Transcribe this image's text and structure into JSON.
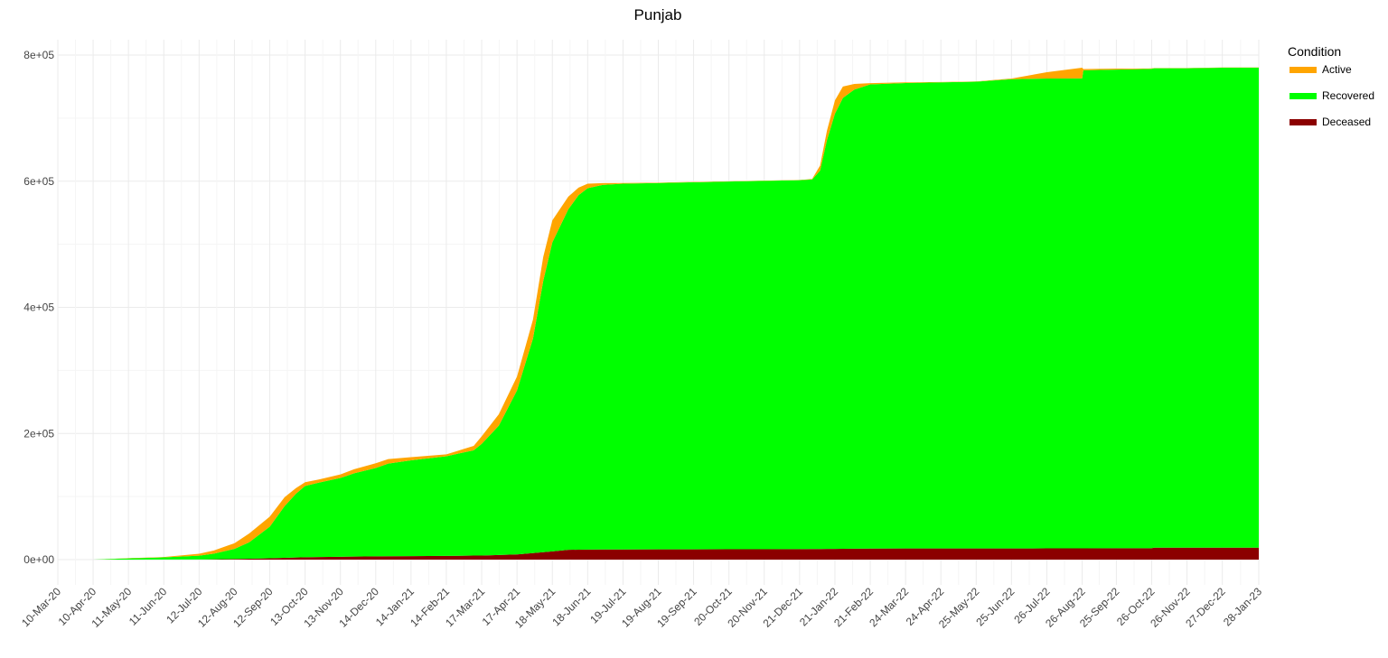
{
  "chart_data": {
    "type": "area",
    "title": "Punjab",
    "xlabel": "",
    "ylabel": "",
    "stacked": true,
    "grid": true,
    "legend_position": "top-right",
    "legend_title": "Condition",
    "ylim": [
      -40000,
      820000
    ],
    "y_ticks": [
      0,
      200000,
      400000,
      600000,
      800000
    ],
    "y_tick_labels": [
      "0e+00",
      "2e+05",
      "4e+05",
      "6e+05",
      "8e+05"
    ],
    "x_ticks": [
      "2020-03-10",
      "2020-04-10",
      "2020-05-11",
      "2020-06-11",
      "2020-07-12",
      "2020-08-12",
      "2020-09-12",
      "2020-10-13",
      "2020-11-13",
      "2020-12-14",
      "2021-01-14",
      "2021-02-14",
      "2021-03-17",
      "2021-04-17",
      "2021-05-18",
      "2021-06-18",
      "2021-07-19",
      "2021-08-19",
      "2021-09-19",
      "2021-10-20",
      "2021-11-20",
      "2021-12-21",
      "2022-01-21",
      "2022-02-21",
      "2022-03-24",
      "2022-04-24",
      "2022-05-25",
      "2022-06-25",
      "2022-07-26",
      "2022-08-26",
      "2022-09-25",
      "2022-10-26",
      "2022-11-26",
      "2022-12-27",
      "2023-01-28"
    ],
    "x_tick_labels": [
      "10-Mar-20",
      "10-Apr-20",
      "11-May-20",
      "11-Jun-20",
      "12-Jul-20",
      "12-Aug-20",
      "12-Sep-20",
      "13-Oct-20",
      "13-Nov-20",
      "14-Dec-20",
      "14-Jan-21",
      "14-Feb-21",
      "17-Mar-21",
      "17-Apr-21",
      "18-May-21",
      "18-Jun-21",
      "19-Jul-21",
      "19-Aug-21",
      "19-Sep-21",
      "20-Oct-21",
      "20-Nov-21",
      "21-Dec-21",
      "21-Jan-22",
      "21-Feb-22",
      "24-Mar-22",
      "24-Apr-22",
      "25-May-22",
      "25-Jun-22",
      "26-Jul-22",
      "26-Aug-22",
      "25-Sep-22",
      "26-Oct-22",
      "26-Nov-22",
      "27-Dec-22",
      "28-Jan-23"
    ],
    "series": [
      {
        "name": "Deceased",
        "color": "#8B0000",
        "points": [
          [
            "2020-03-10",
            0
          ],
          [
            "2020-04-10",
            0
          ],
          [
            "2020-05-11",
            0
          ],
          [
            "2020-06-11",
            100
          ],
          [
            "2020-07-12",
            250
          ],
          [
            "2020-08-12",
            1000
          ],
          [
            "2020-09-12",
            2200
          ],
          [
            "2020-10-13",
            3800
          ],
          [
            "2020-11-13",
            4500
          ],
          [
            "2020-12-14",
            5200
          ],
          [
            "2021-01-14",
            5500
          ],
          [
            "2021-02-14",
            5900
          ],
          [
            "2021-03-17",
            6500
          ],
          [
            "2021-04-17",
            8300
          ],
          [
            "2021-05-18",
            13000
          ],
          [
            "2021-06-01",
            15500
          ],
          [
            "2021-06-18",
            16000
          ],
          [
            "2021-07-19",
            16100
          ],
          [
            "2021-08-19",
            16200
          ],
          [
            "2021-09-19",
            16300
          ],
          [
            "2021-10-20",
            16400
          ],
          [
            "2021-11-20",
            16500
          ],
          [
            "2021-12-21",
            16600
          ],
          [
            "2022-01-21",
            17000
          ],
          [
            "2022-02-21",
            17500
          ],
          [
            "2022-03-24",
            17700
          ],
          [
            "2022-04-24",
            17700
          ],
          [
            "2022-05-25",
            17700
          ],
          [
            "2022-06-25",
            17700
          ],
          [
            "2022-07-26",
            17800
          ],
          [
            "2022-08-26",
            17900
          ],
          [
            "2022-09-25",
            18000
          ],
          [
            "2022-10-26",
            18100
          ],
          [
            "2022-10-28",
            19000
          ],
          [
            "2022-11-26",
            19000
          ],
          [
            "2022-12-27",
            19000
          ],
          [
            "2023-01-28",
            19000
          ]
        ]
      },
      {
        "name": "Recovered",
        "color": "#00FF00",
        "points": [
          [
            "2020-03-10",
            0
          ],
          [
            "2020-04-10",
            0
          ],
          [
            "2020-05-11",
            2000
          ],
          [
            "2020-06-11",
            3500
          ],
          [
            "2020-07-12",
            6000
          ],
          [
            "2020-07-25",
            9000
          ],
          [
            "2020-08-12",
            16000
          ],
          [
            "2020-08-25",
            26000
          ],
          [
            "2020-09-12",
            50000
          ],
          [
            "2020-09-25",
            82000
          ],
          [
            "2020-10-05",
            101000
          ],
          [
            "2020-10-13",
            113000
          ],
          [
            "2020-10-25",
            118000
          ],
          [
            "2020-11-13",
            125000
          ],
          [
            "2020-11-25",
            132000
          ],
          [
            "2020-12-14",
            140000
          ],
          [
            "2020-12-25",
            147000
          ],
          [
            "2021-01-14",
            152000
          ],
          [
            "2021-02-14",
            158000
          ],
          [
            "2021-03-10",
            167000
          ],
          [
            "2021-03-17",
            177000
          ],
          [
            "2021-04-01",
            205000
          ],
          [
            "2021-04-17",
            260000
          ],
          [
            "2021-05-01",
            340000
          ],
          [
            "2021-05-10",
            430000
          ],
          [
            "2021-05-18",
            490000
          ],
          [
            "2021-06-01",
            540000
          ],
          [
            "2021-06-10",
            562000
          ],
          [
            "2021-06-18",
            573000
          ],
          [
            "2021-07-01",
            578000
          ],
          [
            "2021-07-19",
            580000
          ],
          [
            "2021-08-19",
            581000
          ],
          [
            "2021-09-19",
            582000
          ],
          [
            "2021-10-20",
            583000
          ],
          [
            "2021-11-20",
            584000
          ],
          [
            "2021-12-21",
            585000
          ],
          [
            "2022-01-01",
            586000
          ],
          [
            "2022-01-08",
            600000
          ],
          [
            "2022-01-14",
            648000
          ],
          [
            "2022-01-21",
            690000
          ],
          [
            "2022-01-28",
            715000
          ],
          [
            "2022-02-07",
            728000
          ],
          [
            "2022-02-21",
            736000
          ],
          [
            "2022-03-24",
            738000
          ],
          [
            "2022-04-24",
            739000
          ],
          [
            "2022-05-25",
            740000
          ],
          [
            "2022-06-25",
            744000
          ],
          [
            "2022-07-26",
            745000
          ],
          [
            "2022-08-26",
            745000
          ],
          [
            "2022-08-27",
            758000
          ],
          [
            "2022-09-25",
            759000
          ],
          [
            "2022-10-26",
            760000
          ],
          [
            "2022-10-28",
            760000
          ],
          [
            "2022-11-26",
            760000
          ],
          [
            "2022-12-27",
            761000
          ],
          [
            "2023-01-28",
            761000
          ]
        ]
      },
      {
        "name": "Active",
        "color": "#FFA500",
        "points": [
          [
            "2020-03-10",
            0
          ],
          [
            "2020-04-10",
            0
          ],
          [
            "2020-05-11",
            300
          ],
          [
            "2020-06-11",
            600
          ],
          [
            "2020-07-12",
            3000
          ],
          [
            "2020-07-25",
            5000
          ],
          [
            "2020-08-12",
            9000
          ],
          [
            "2020-08-25",
            14000
          ],
          [
            "2020-09-12",
            16000
          ],
          [
            "2020-09-25",
            14000
          ],
          [
            "2020-10-05",
            9000
          ],
          [
            "2020-10-13",
            6000
          ],
          [
            "2020-10-25",
            5000
          ],
          [
            "2020-11-13",
            5500
          ],
          [
            "2020-11-25",
            6500
          ],
          [
            "2020-12-14",
            7500
          ],
          [
            "2020-12-25",
            7000
          ],
          [
            "2021-01-14",
            5000
          ],
          [
            "2021-02-14",
            3000
          ],
          [
            "2021-03-10",
            7000
          ],
          [
            "2021-03-17",
            12000
          ],
          [
            "2021-04-01",
            18000
          ],
          [
            "2021-04-17",
            22000
          ],
          [
            "2021-05-01",
            30000
          ],
          [
            "2021-05-10",
            38000
          ],
          [
            "2021-05-18",
            35000
          ],
          [
            "2021-06-01",
            20000
          ],
          [
            "2021-06-10",
            12000
          ],
          [
            "2021-06-18",
            7000
          ],
          [
            "2021-07-01",
            3000
          ],
          [
            "2021-07-19",
            1000
          ],
          [
            "2021-08-19",
            500
          ],
          [
            "2021-09-19",
            500
          ],
          [
            "2021-10-20",
            400
          ],
          [
            "2021-11-20",
            400
          ],
          [
            "2021-12-21",
            300
          ],
          [
            "2022-01-01",
            800
          ],
          [
            "2022-01-08",
            8000
          ],
          [
            "2022-01-14",
            15000
          ],
          [
            "2022-01-21",
            21000
          ],
          [
            "2022-01-28",
            18000
          ],
          [
            "2022-02-07",
            9000
          ],
          [
            "2022-02-21",
            2000
          ],
          [
            "2022-03-24",
            1000
          ],
          [
            "2022-04-24",
            600
          ],
          [
            "2022-05-25",
            500
          ],
          [
            "2022-06-25",
            1000
          ],
          [
            "2022-07-26",
            10000
          ],
          [
            "2022-08-26",
            17000
          ],
          [
            "2022-08-27",
            2000
          ],
          [
            "2022-09-25",
            1500
          ],
          [
            "2022-10-26",
            700
          ],
          [
            "2022-10-28",
            500
          ],
          [
            "2022-11-26",
            400
          ],
          [
            "2022-12-27",
            300
          ],
          [
            "2023-01-28",
            300
          ]
        ]
      }
    ]
  }
}
